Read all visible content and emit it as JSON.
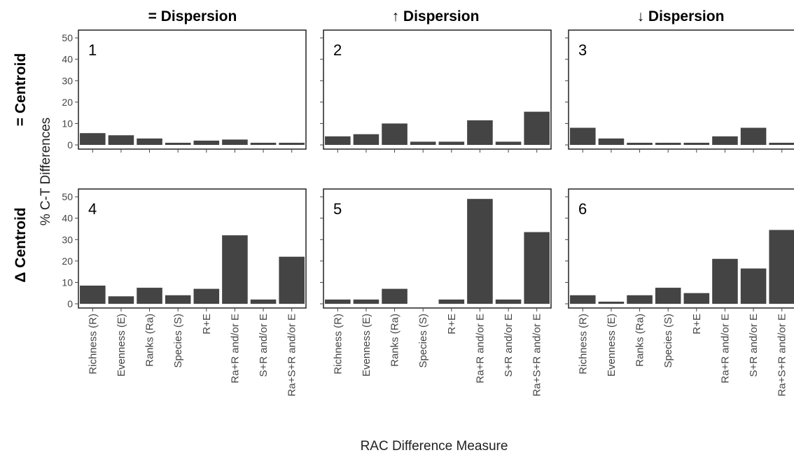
{
  "chart_data": {
    "type": "bar",
    "xlabel": "RAC Difference Measure",
    "ylabel": "% C-T Differences",
    "ylim": [
      0,
      52
    ],
    "yticks": [
      0,
      10,
      20,
      30,
      40,
      50
    ],
    "grid": false,
    "bar_color": "#444444",
    "column_titles": [
      "= Dispersion",
      "↑ Dispersion",
      "↓ Dispersion"
    ],
    "row_titles": [
      "= Centroid",
      "Δ Centroid"
    ],
    "categories": [
      "Richness (R)",
      "Evenness (E)",
      "Ranks (Ra)",
      "Species (S)",
      "R+E",
      "Ra+R and/or E",
      "S+R and/or E",
      "Ra+S+R and/or E"
    ],
    "panels": [
      {
        "label": "1",
        "values": [
          5.5,
          4.5,
          3,
          1,
          2,
          2.5,
          1,
          1
        ]
      },
      {
        "label": "2",
        "values": [
          4,
          5,
          10,
          1.5,
          1.5,
          11.5,
          1.5,
          15.5
        ]
      },
      {
        "label": "3",
        "values": [
          8,
          3,
          1,
          1,
          1,
          4,
          8,
          1
        ]
      },
      {
        "label": "4",
        "values": [
          8.5,
          3.5,
          7.5,
          4,
          7,
          32,
          2,
          22
        ]
      },
      {
        "label": "5",
        "values": [
          2,
          2,
          7,
          0,
          2,
          49,
          2,
          33.5
        ]
      },
      {
        "label": "6",
        "values": [
          4,
          1,
          4,
          7.5,
          5,
          21,
          16.5,
          34.5
        ]
      }
    ]
  }
}
